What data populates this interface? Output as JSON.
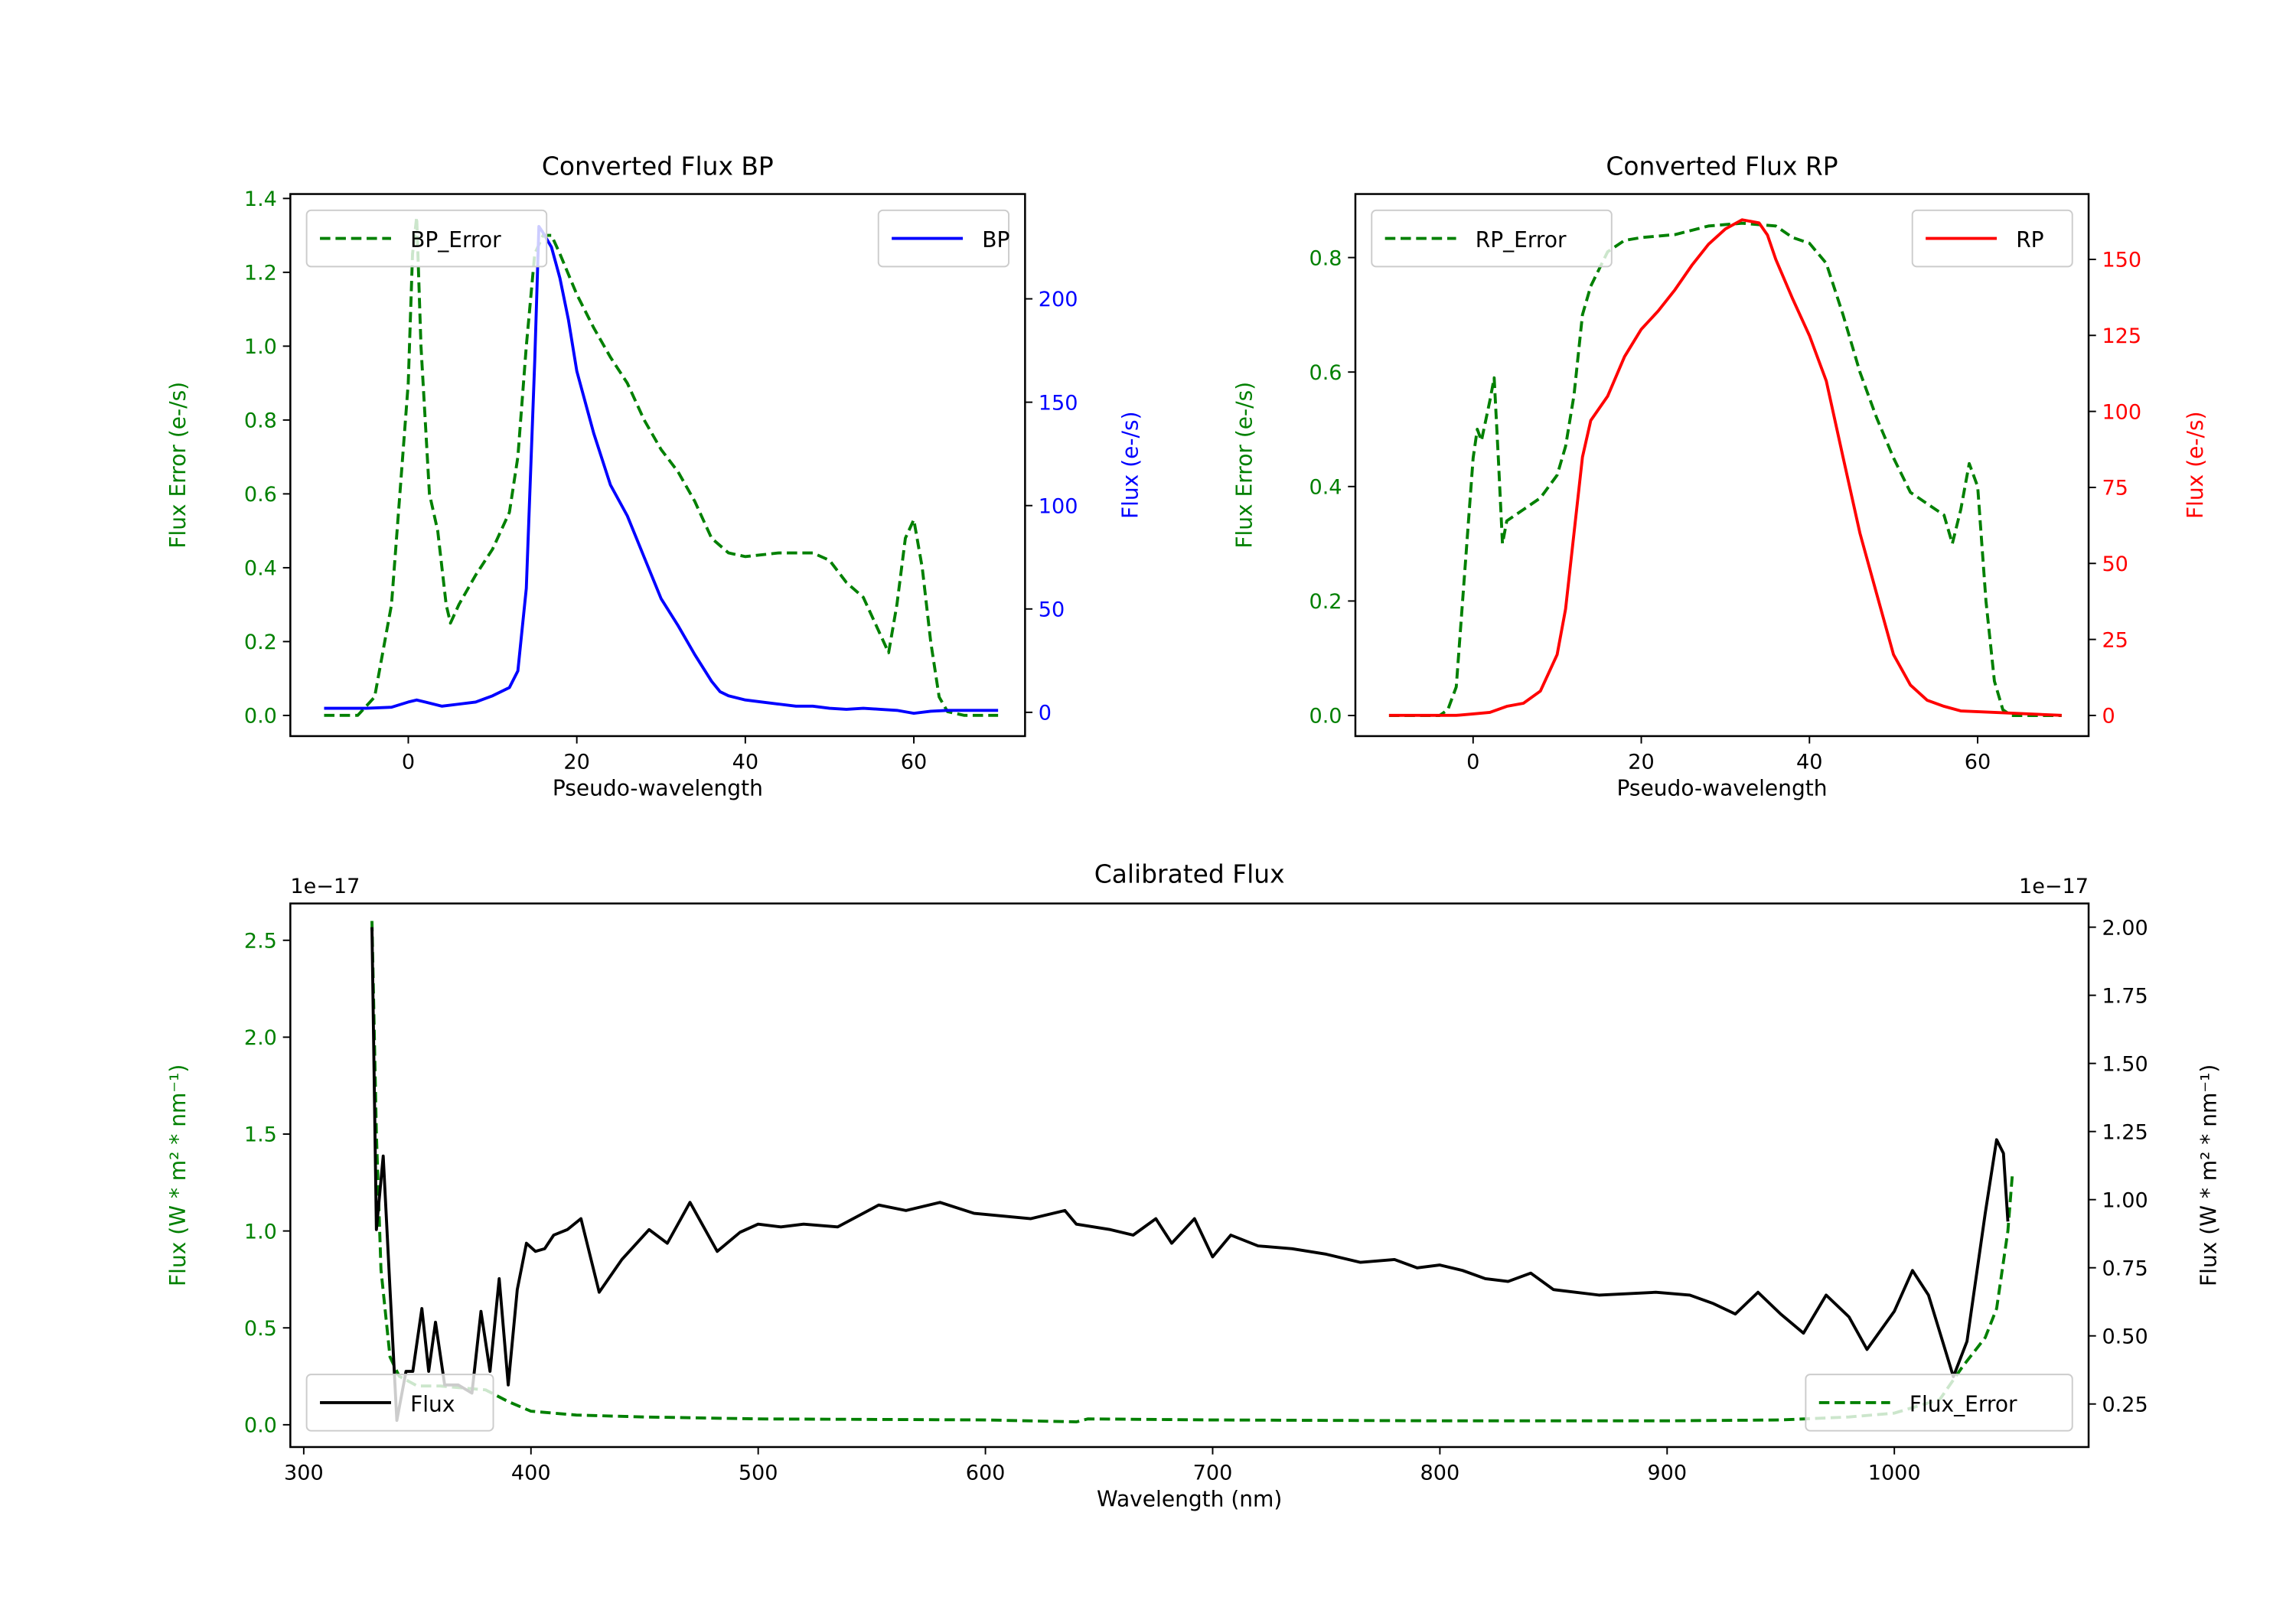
{
  "chart_data": [
    {
      "type": "line",
      "title": "Converted Flux BP",
      "xlabel": "Pseudo-wavelength",
      "ylabel": "Flux Error (e-/s)",
      "ylabel_right": "Flux (e-/s)",
      "xlim": [
        -14,
        73.2
      ],
      "ylim": [
        -0.056,
        1.412
      ],
      "ylim_right": [
        -11.5,
        250.7
      ],
      "xticks": [
        0,
        20,
        40,
        60
      ],
      "yticks": [
        "0.0",
        "0.2",
        "0.4",
        "0.6",
        "0.8",
        "1.0",
        "1.2",
        "1.4"
      ],
      "yticks_right": [
        "0",
        "50",
        "100",
        "150",
        "200"
      ],
      "left_color": "#008000",
      "right_color": "#0000ff",
      "series": [
        {
          "name": "BP_Error",
          "axis": "left",
          "style": "dashed",
          "color": "#008000",
          "x": [
            -10,
            -6,
            -4,
            -2,
            0,
            0.5,
            1,
            1.5,
            2.5,
            3.5,
            4.5,
            5,
            6,
            8,
            10,
            12,
            13,
            14,
            15,
            16,
            17,
            18,
            20,
            22,
            24,
            26,
            28,
            30,
            32,
            34,
            36,
            38,
            40,
            44,
            48,
            50,
            52,
            54,
            56,
            57,
            58,
            59,
            60,
            61,
            62,
            63,
            64,
            66,
            70
          ],
          "y": [
            0,
            0,
            0.05,
            0.3,
            0.9,
            1.25,
            1.35,
            1.0,
            0.6,
            0.5,
            0.3,
            0.25,
            0.3,
            0.38,
            0.45,
            0.55,
            0.7,
            1.0,
            1.25,
            1.3,
            1.3,
            1.25,
            1.14,
            1.05,
            0.97,
            0.9,
            0.8,
            0.72,
            0.66,
            0.58,
            0.48,
            0.44,
            0.43,
            0.44,
            0.44,
            0.42,
            0.36,
            0.32,
            0.22,
            0.17,
            0.3,
            0.48,
            0.53,
            0.4,
            0.2,
            0.05,
            0.01,
            0,
            0
          ]
        },
        {
          "name": "BP",
          "axis": "right",
          "style": "solid",
          "color": "#0000ff",
          "x": [
            -10,
            -5,
            -2,
            0,
            1,
            2,
            4,
            6,
            8,
            10,
            12,
            13,
            14,
            15,
            15.5,
            16,
            17,
            18,
            19,
            20,
            22,
            24,
            26,
            28,
            30,
            32,
            34,
            36,
            37,
            38,
            40,
            42,
            44,
            46,
            48,
            50,
            52,
            54,
            56,
            58,
            60,
            62,
            64,
            66,
            70
          ],
          "y": [
            2,
            2,
            2.5,
            5,
            6,
            5,
            3,
            4,
            5,
            8,
            12,
            20,
            60,
            170,
            235,
            232,
            225,
            210,
            190,
            165,
            135,
            110,
            95,
            75,
            55,
            42,
            28,
            15,
            10,
            8,
            6,
            5,
            4,
            3,
            3,
            2,
            1.5,
            2,
            1.5,
            1,
            -0.5,
            0.5,
            1,
            1,
            1
          ]
        }
      ],
      "legend_left": "top-left",
      "legend_right": "top-right"
    },
    {
      "type": "line",
      "title": "Converted Flux RP",
      "xlabel": "Pseudo-wavelength",
      "ylabel": "Flux Error (e-/s)",
      "ylabel_right": "Flux (e-/s)",
      "xlim": [
        -14,
        73.2
      ],
      "ylim": [
        -0.036,
        0.911
      ],
      "ylim_right": [
        -6.8,
        171.5
      ],
      "xticks": [
        0,
        20,
        40,
        60
      ],
      "yticks": [
        "0.0",
        "0.2",
        "0.4",
        "0.6",
        "0.8"
      ],
      "yticks_right": [
        "0",
        "25",
        "50",
        "75",
        "100",
        "125",
        "150"
      ],
      "left_color": "#008000",
      "right_color": "#ff0000",
      "series": [
        {
          "name": "RP_Error",
          "axis": "left",
          "style": "dashed",
          "color": "#008000",
          "x": [
            -10,
            -4,
            -3,
            -2,
            -1,
            0,
            0.5,
            1,
            2,
            2.5,
            3,
            3.5,
            4,
            6,
            8,
            10,
            11,
            12,
            13,
            14,
            16,
            18,
            20,
            24,
            28,
            32,
            36,
            38,
            40,
            42,
            44,
            46,
            48,
            50,
            52,
            54,
            56,
            57,
            58,
            59,
            60,
            61,
            62,
            63,
            64,
            70
          ],
          "y": [
            0,
            0,
            0.01,
            0.05,
            0.25,
            0.45,
            0.5,
            0.48,
            0.55,
            0.59,
            0.45,
            0.3,
            0.34,
            0.36,
            0.38,
            0.42,
            0.47,
            0.56,
            0.7,
            0.75,
            0.81,
            0.83,
            0.835,
            0.84,
            0.855,
            0.86,
            0.855,
            0.835,
            0.825,
            0.79,
            0.7,
            0.6,
            0.52,
            0.45,
            0.39,
            0.37,
            0.35,
            0.3,
            0.36,
            0.44,
            0.4,
            0.2,
            0.06,
            0.01,
            0,
            0
          ]
        },
        {
          "name": "RP",
          "axis": "right",
          "style": "solid",
          "color": "#ff0000",
          "x": [
            -10,
            -2,
            0,
            2,
            4,
            6,
            8,
            10,
            11,
            12,
            13,
            14,
            16,
            18,
            20,
            22,
            24,
            26,
            28,
            30,
            32,
            34,
            35,
            36,
            38,
            40,
            42,
            44,
            46,
            48,
            50,
            52,
            54,
            56,
            58,
            62,
            70
          ],
          "y": [
            0,
            0,
            0.5,
            1,
            3,
            4,
            8,
            20,
            35,
            60,
            85,
            97,
            105,
            118,
            127,
            133,
            140,
            148,
            155,
            160,
            163,
            162,
            158,
            150,
            137,
            125,
            110,
            85,
            60,
            40,
            20,
            10,
            5,
            3,
            1.5,
            1,
            0
          ]
        }
      ],
      "legend_left": "top-left",
      "legend_right": "top-right"
    },
    {
      "type": "line",
      "title": "Calibrated Flux",
      "xlabel": "Wavelength (nm)",
      "ylabel": "Flux (W * m² * nm⁻¹)",
      "ylabel_right": "Flux (W * m² * nm⁻¹)",
      "offset_left": "1e−17",
      "offset_right": "1e−17",
      "xlim": [
        294.1,
        1085.5
      ],
      "ylim": [
        -0.115,
        2.69
      ],
      "ylim_right": [
        0.092,
        2.087
      ],
      "xticks": [
        300,
        400,
        500,
        600,
        700,
        800,
        900,
        1000
      ],
      "yticks": [
        "0.0",
        "0.5",
        "1.0",
        "1.5",
        "2.0",
        "2.5"
      ],
      "yticks_right": [
        "0.25",
        "0.50",
        "0.75",
        "1.00",
        "1.25",
        "1.50",
        "1.75",
        "2.00"
      ],
      "left_color": "#008000",
      "right_color": "#000000",
      "series": [
        {
          "name": "Flux_Error",
          "axis": "left",
          "style": "dashed",
          "color": "#008000",
          "x": [
            330,
            332,
            334,
            338,
            342,
            350,
            360,
            380,
            390,
            400,
            420,
            450,
            500,
            600,
            640,
            645,
            700,
            800,
            900,
            950,
            980,
            1000,
            1020,
            1030,
            1040,
            1045,
            1050,
            1052
          ],
          "y": [
            2.6,
            1.5,
            0.8,
            0.35,
            0.25,
            0.2,
            0.2,
            0.18,
            0.12,
            0.07,
            0.05,
            0.04,
            0.03,
            0.025,
            0.015,
            0.03,
            0.025,
            0.02,
            0.02,
            0.025,
            0.04,
            0.06,
            0.13,
            0.3,
            0.45,
            0.6,
            1.0,
            1.3
          ]
        },
        {
          "name": "Flux",
          "axis": "right",
          "style": "solid",
          "color": "#000000",
          "x": [
            330,
            332,
            335,
            338,
            341,
            345,
            348,
            352,
            355,
            358,
            362,
            368,
            374,
            378,
            382,
            386,
            390,
            394,
            398,
            402,
            406,
            410,
            416,
            422,
            430,
            440,
            452,
            460,
            470,
            482,
            492,
            500,
            510,
            520,
            535,
            553,
            565,
            580,
            595,
            620,
            635,
            640,
            655,
            665,
            675,
            682,
            692,
            700,
            708,
            720,
            735,
            750,
            765,
            780,
            790,
            800,
            810,
            820,
            830,
            840,
            850,
            870,
            895,
            910,
            920,
            930,
            940,
            950,
            960,
            970,
            980,
            988,
            1000,
            1008,
            1015,
            1026,
            1032,
            1040,
            1045,
            1048,
            1050
          ],
          "y": [
            2.0,
            0.89,
            1.16,
            0.67,
            0.19,
            0.37,
            0.37,
            0.6,
            0.37,
            0.55,
            0.32,
            0.32,
            0.29,
            0.59,
            0.37,
            0.71,
            0.32,
            0.67,
            0.84,
            0.81,
            0.82,
            0.87,
            0.89,
            0.93,
            0.66,
            0.78,
            0.89,
            0.84,
            0.99,
            0.81,
            0.88,
            0.91,
            0.9,
            0.91,
            0.9,
            0.98,
            0.96,
            0.99,
            0.95,
            0.93,
            0.96,
            0.91,
            0.89,
            0.87,
            0.93,
            0.84,
            0.93,
            0.79,
            0.87,
            0.83,
            0.82,
            0.8,
            0.77,
            0.78,
            0.75,
            0.76,
            0.74,
            0.71,
            0.7,
            0.73,
            0.67,
            0.65,
            0.66,
            0.65,
            0.62,
            0.58,
            0.66,
            0.58,
            0.51,
            0.65,
            0.57,
            0.45,
            0.59,
            0.74,
            0.65,
            0.35,
            0.48,
            0.95,
            1.22,
            1.17,
            0.92
          ]
        }
      ],
      "legend_left": "lower-left",
      "legend_right": "lower-right"
    }
  ]
}
